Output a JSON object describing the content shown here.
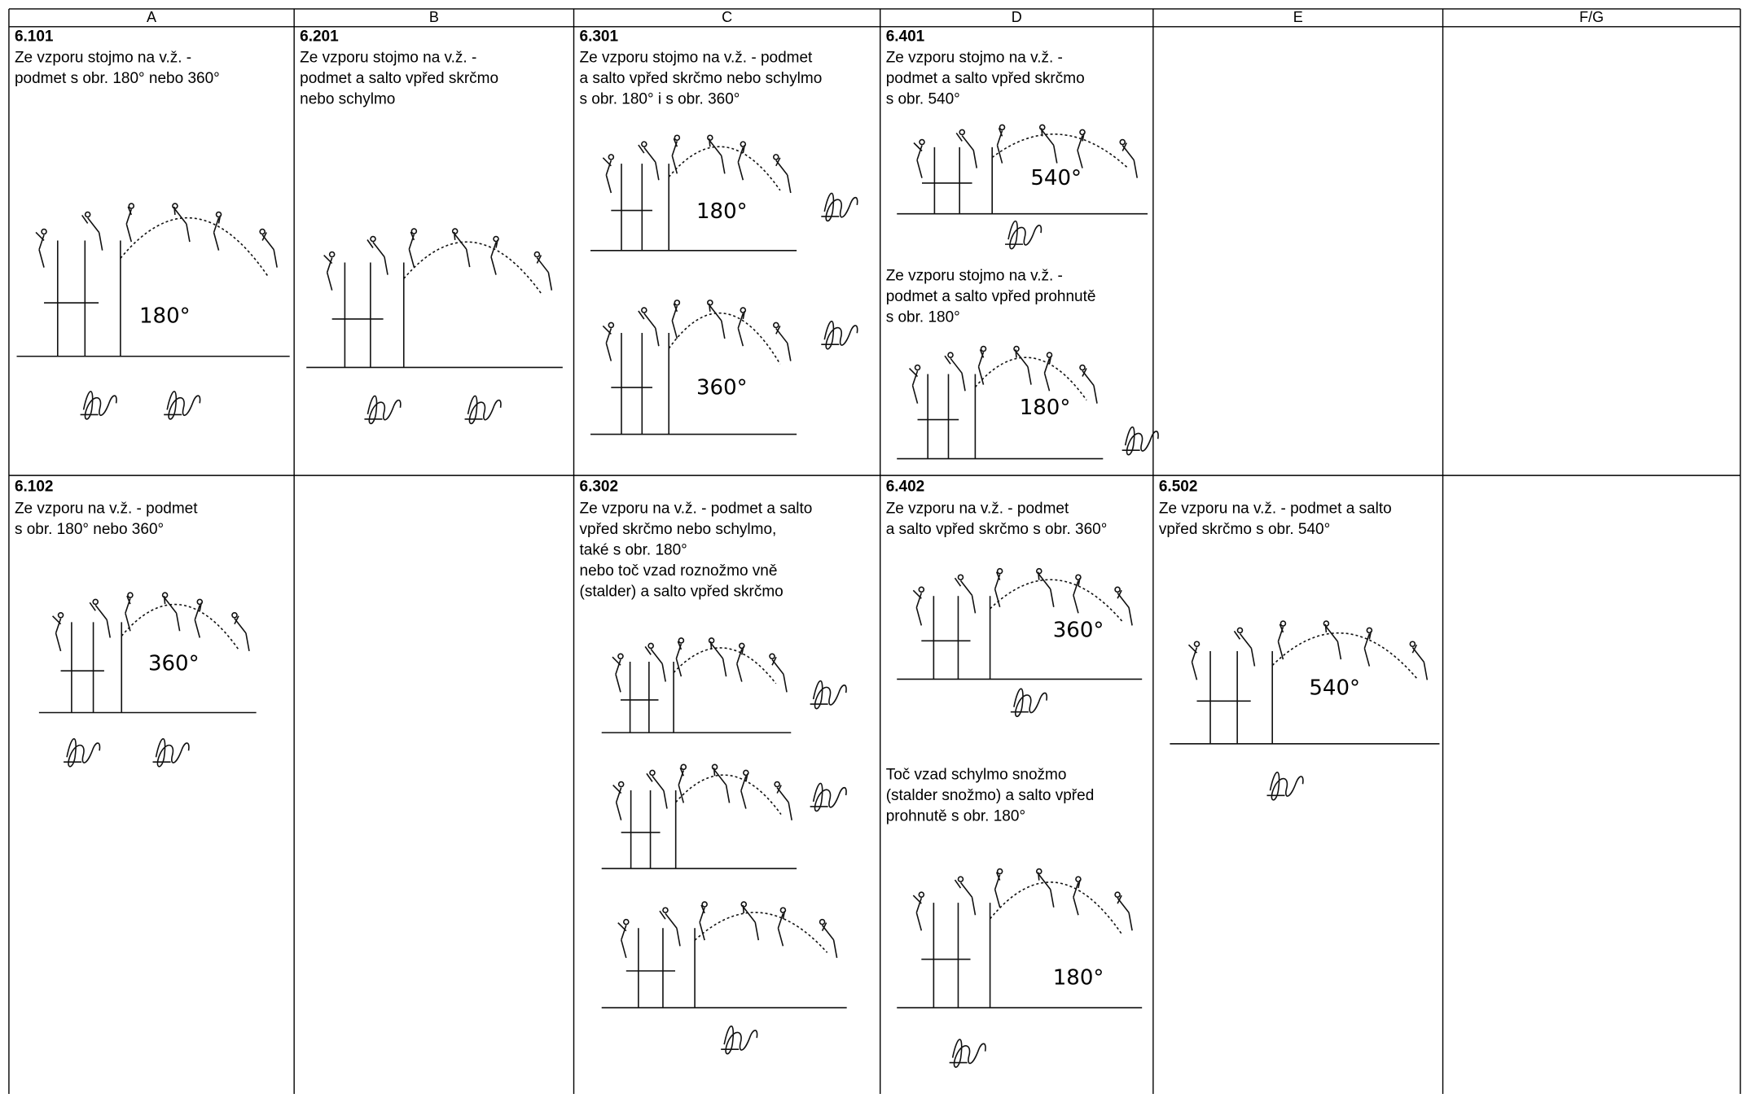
{
  "header": [
    "A",
    "B",
    "C",
    "D",
    "E",
    "F/G"
  ],
  "rows": [
    [
      {
        "code": "6.101",
        "entries": [
          {
            "description": [
              "Ze vzporu stojmo na v.ž. -",
              "podmet s obr. 180° nebo 360°"
            ],
            "figure_labels": [
              "180°"
            ]
          }
        ]
      },
      {
        "code": "6.201",
        "entries": [
          {
            "description": [
              "Ze vzporu stojmo na v.ž. -",
              "podmet a salto vpřed skrčmo",
              "nebo schylmo"
            ]
          }
        ]
      },
      {
        "code": "6.301",
        "entries": [
          {
            "description": [
              "Ze vzporu stojmo na v.ž. - podmet",
              "a salto vpřed skrčmo nebo schylmo",
              "s obr. 180° i s obr. 360°"
            ],
            "figure_labels": [
              "180°",
              "360°"
            ]
          }
        ]
      },
      {
        "code": "6.401",
        "entries": [
          {
            "description": [
              "Ze vzporu stojmo na v.ž. -",
              "podmet a salto vpřed skrčmo",
              "s obr. 540°"
            ],
            "figure_labels": [
              "540°"
            ]
          },
          {
            "description": [
              "Ze vzporu stojmo na v.ž. -",
              "podmet a salto vpřed prohnutě",
              "s obr. 180°"
            ],
            "figure_labels": [
              "180°"
            ]
          }
        ]
      },
      null,
      null
    ],
    [
      {
        "code": "6.102",
        "entries": [
          {
            "description": [
              "Ze vzporu na v.ž. - podmet",
              "s obr. 180° nebo 360°"
            ],
            "figure_labels": [
              "360°"
            ]
          }
        ]
      },
      null,
      {
        "code": "6.302",
        "entries": [
          {
            "description": [
              "Ze vzporu na v.ž. - podmet a salto",
              "vpřed skrčmo nebo schylmo,",
              "také s obr. 180°",
              "nebo toč vzad roznožmo vně",
              "(stalder) a salto vpřed skrčmo"
            ]
          }
        ]
      },
      {
        "code": "6.402",
        "entries": [
          {
            "description": [
              "Ze vzporu na v.ž. - podmet",
              "a salto vpřed skrčmo s obr. 360°"
            ],
            "figure_labels": [
              "360°"
            ]
          },
          {
            "description": [
              "Toč vzad schylmo snožmo",
              "(stalder snožmo) a salto vpřed",
              "prohnutě s obr. 180°"
            ],
            "figure_labels": [
              "180°"
            ]
          }
        ]
      },
      {
        "code": "6.502",
        "entries": [
          {
            "description": [
              "Ze vzporu na v.ž. - podmet a salto",
              "vpřed skrčmo s obr. 540°"
            ],
            "figure_labels": [
              "540°"
            ]
          }
        ]
      },
      null
    ]
  ]
}
